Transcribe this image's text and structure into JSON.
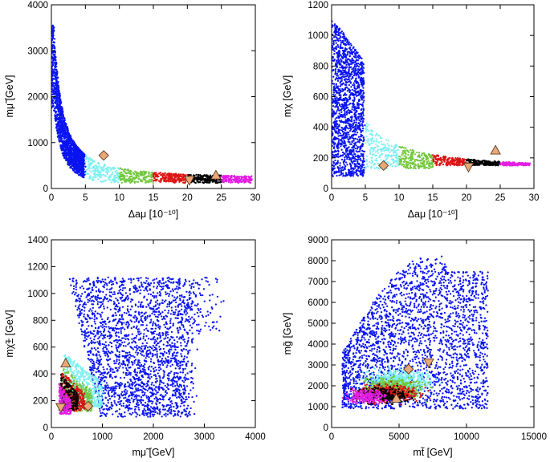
{
  "palette": {
    "band_0_5": "#0a14f0",
    "band_5_10": "#7ff0f2",
    "band_10_15": "#72c83c",
    "band_15_20": "#dc1414",
    "band_20_25": "#000000",
    "band_25_30": "#e21ee2",
    "marker_fill": "#e8a878",
    "marker_stroke": "#5a3a20"
  },
  "chart_data": [
    {
      "id": "p1",
      "type": "scatter",
      "xlabel": "Δaμ [10⁻¹⁰]",
      "ylabel": "mμ̃ [GeV]",
      "xlim": [
        0,
        30
      ],
      "ylim": [
        0,
        4000
      ],
      "xticks": [
        "0",
        "5",
        "10",
        "15",
        "20",
        "25",
        "30"
      ],
      "yticks": [
        "0",
        "1000",
        "2000",
        "3000",
        "4000"
      ],
      "markers": [
        {
          "shape": "diamond",
          "x": 7.7,
          "y": 720
        },
        {
          "shape": "triangle-down",
          "x": 20.3,
          "y": 180
        },
        {
          "shape": "triangle-up",
          "x": 24.2,
          "y": 290
        }
      ]
    },
    {
      "id": "p2",
      "type": "scatter",
      "xlabel": "Δaμ [10⁻¹⁰]",
      "ylabel": "mχ [GeV]",
      "xlim": [
        0,
        30
      ],
      "ylim": [
        0,
        1200
      ],
      "xticks": [
        "0",
        "5",
        "10",
        "15",
        "20",
        "25",
        "30"
      ],
      "yticks": [
        "0",
        "200",
        "400",
        "600",
        "800",
        "1000",
        "1200"
      ],
      "markers": [
        {
          "shape": "diamond",
          "x": 7.7,
          "y": 150
        },
        {
          "shape": "triangle-down",
          "x": 20.3,
          "y": 140
        },
        {
          "shape": "triangle-up",
          "x": 24.3,
          "y": 250
        }
      ]
    },
    {
      "id": "p3",
      "type": "scatter",
      "xlabel": "mμ̃ [GeV]",
      "ylabel": "mχ̃± [GeV]",
      "xlim": [
        0,
        4000
      ],
      "ylim": [
        0,
        1400
      ],
      "xticks": [
        "0",
        "1000",
        "2000",
        "3000",
        "4000"
      ],
      "yticks": [
        "0",
        "200",
        "400",
        "600",
        "800",
        "1000",
        "1200",
        "1400"
      ],
      "markers": [
        {
          "shape": "triangle-up",
          "x": 280,
          "y": 480
        },
        {
          "shape": "diamond",
          "x": 720,
          "y": 160
        },
        {
          "shape": "triangle-down",
          "x": 185,
          "y": 150
        }
      ]
    },
    {
      "id": "p4",
      "type": "scatter",
      "xlabel": "mt̃ [GeV]",
      "ylabel": "mg̃ [GeV]",
      "xlim": [
        0,
        15000
      ],
      "ylim": [
        0,
        9000
      ],
      "xticks": [
        "0",
        "5000",
        "10000",
        "15000"
      ],
      "yticks": [
        "0",
        "1000",
        "2000",
        "3000",
        "4000",
        "5000",
        "6000",
        "7000",
        "8000",
        "9000"
      ],
      "markers": [
        {
          "shape": "triangle-down",
          "x": 7200,
          "y": 3100
        },
        {
          "shape": "diamond",
          "x": 5700,
          "y": 2800
        },
        {
          "shape": "triangle-up",
          "x": 4800,
          "y": 1400
        }
      ]
    }
  ]
}
